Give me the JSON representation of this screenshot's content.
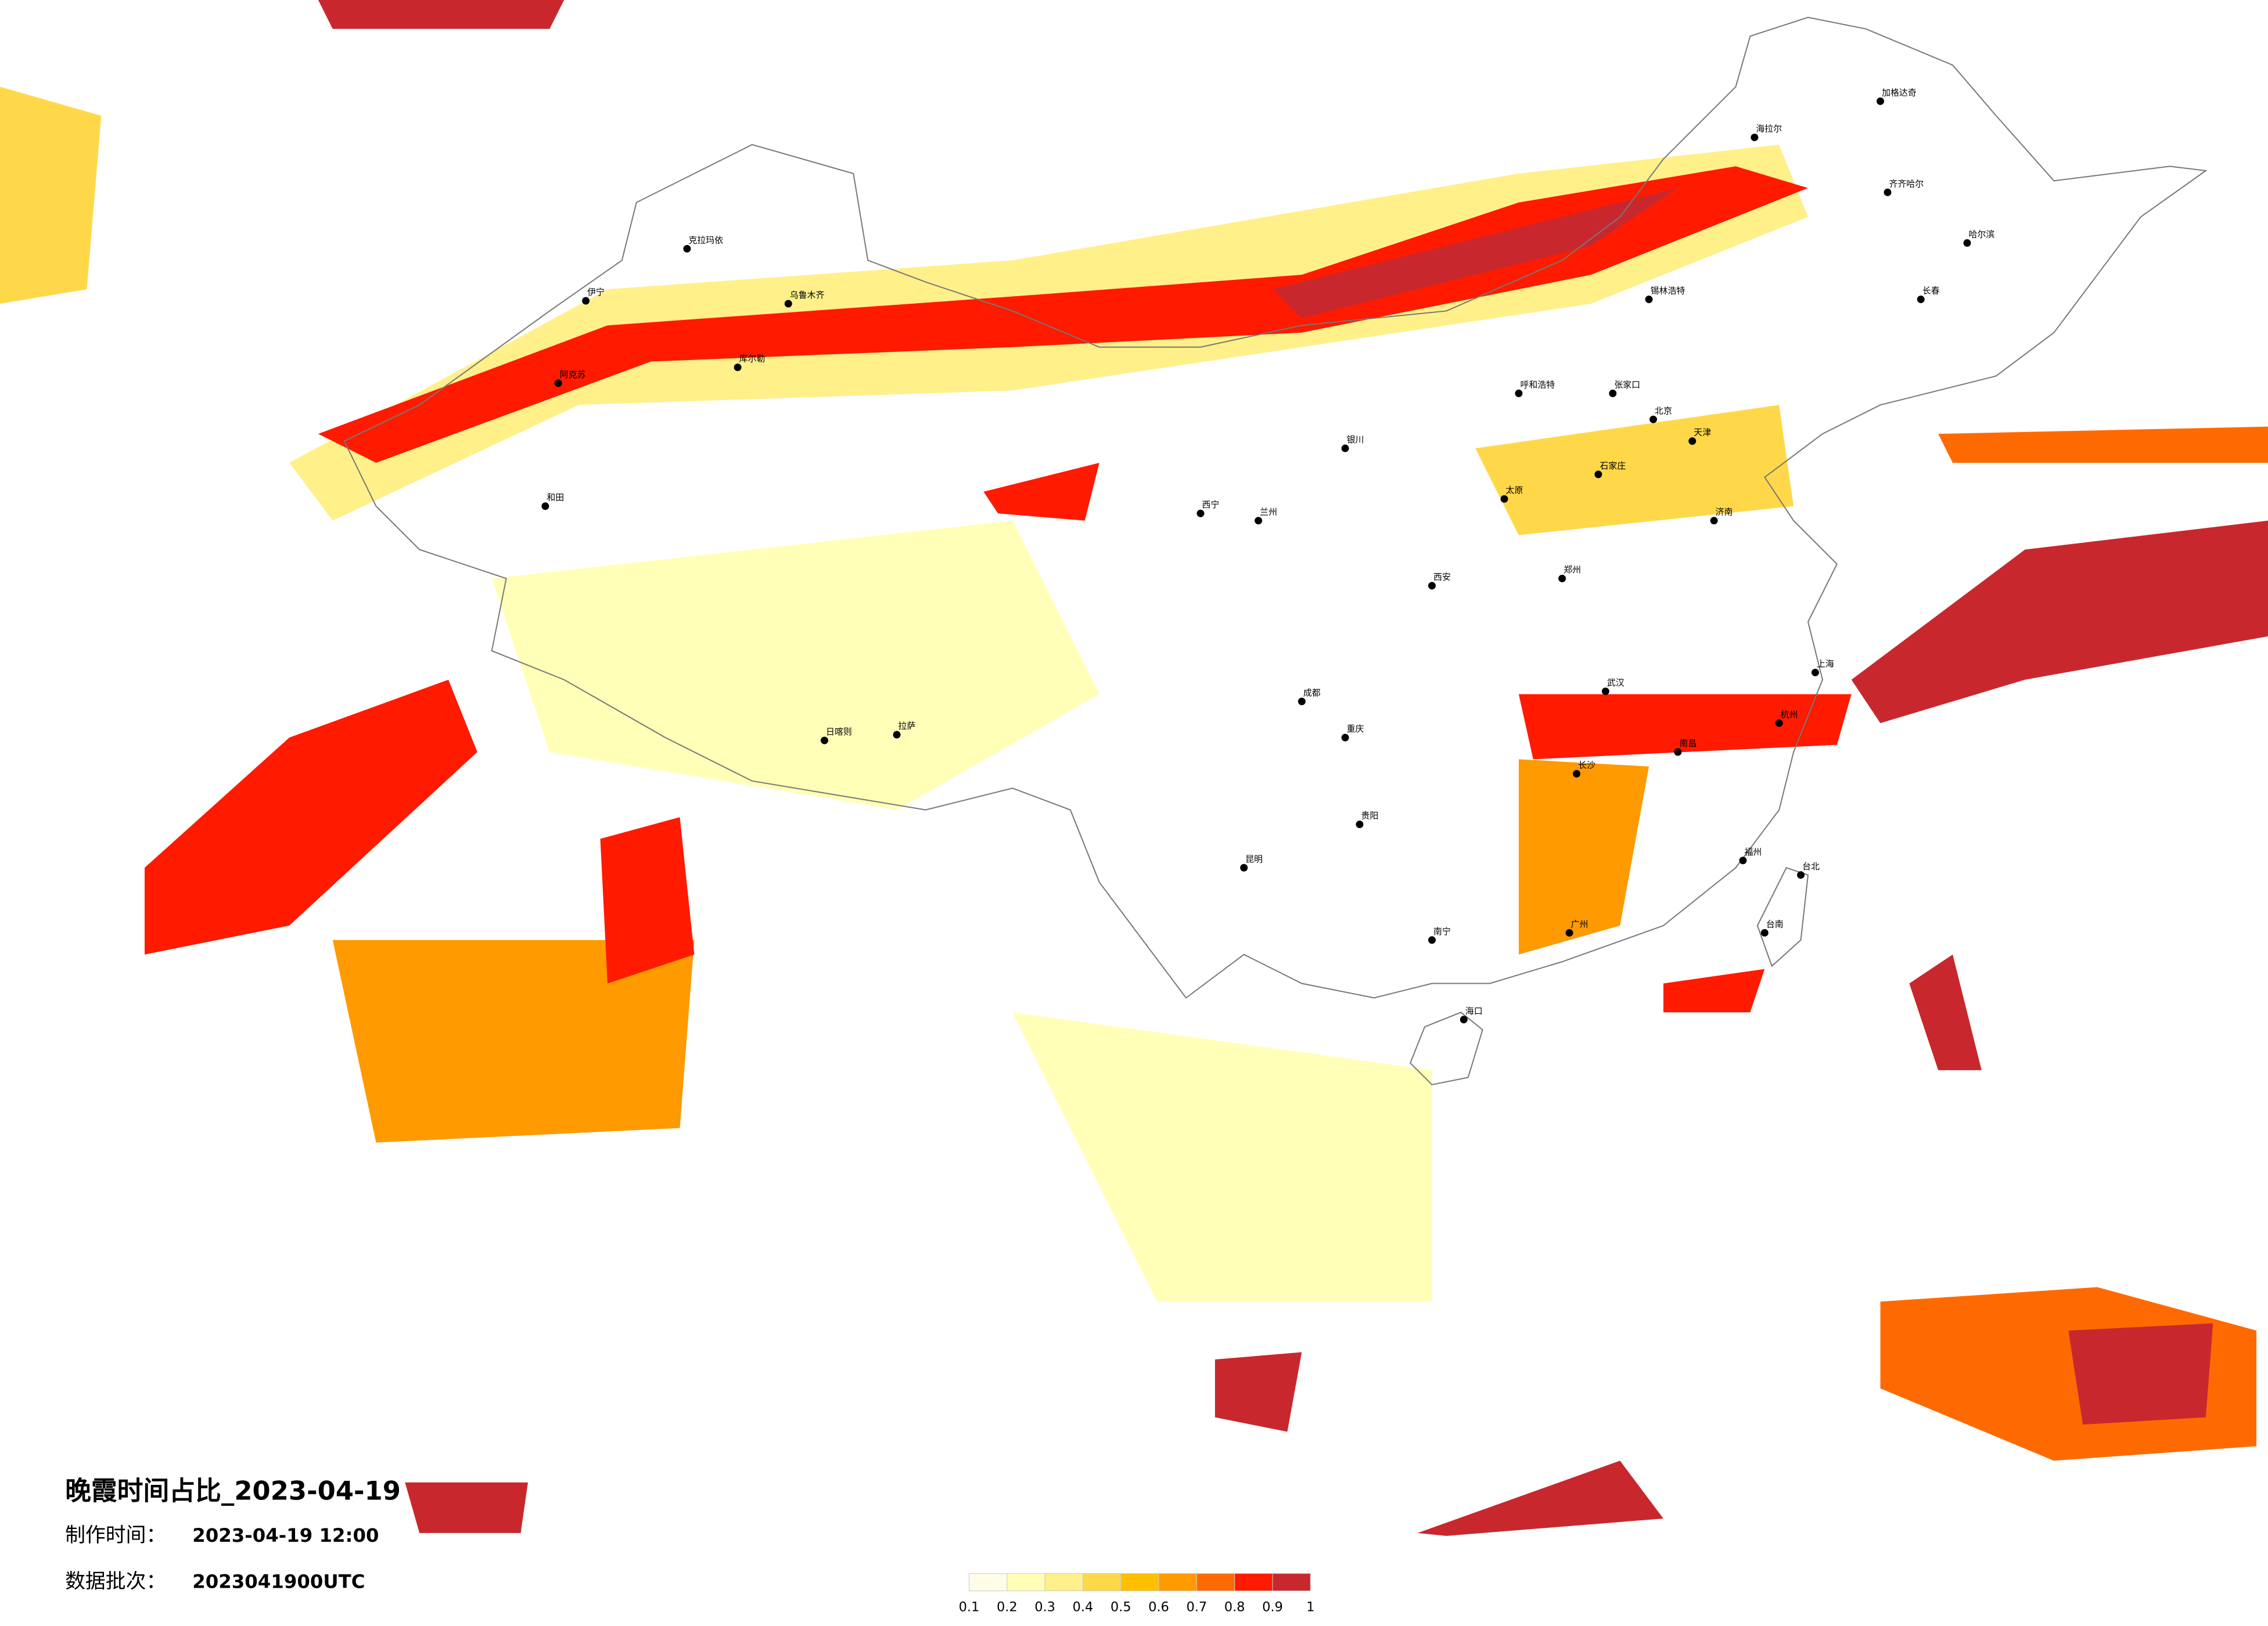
{
  "title": "晚霞时间占比_2023-04-19",
  "made_label": "制作时间：",
  "made_value": "2023-04-19 12:00",
  "batch_label": "数据批次：",
  "batch_value": "2023041900UTC",
  "colorbar": {
    "ticks": [
      0.1,
      0.2,
      0.3,
      0.4,
      0.5,
      0.6,
      0.7,
      0.8,
      0.9,
      1
    ],
    "colors": [
      "#fffde8",
      "#ffffb8",
      "#fff08a",
      "#ffd84a",
      "#ffbf00",
      "#ff9a00",
      "#ff6a00",
      "#ff1a00",
      "#c8282d"
    ]
  },
  "cities": [
    "克拉玛依",
    "伊宁",
    "乌鲁木齐",
    "库尔勒",
    "阿克苏",
    "和田",
    "海拉尔",
    "加格达奇",
    "齐齐哈尔",
    "哈尔滨",
    "长春",
    "锡林浩特",
    "呼和浩特",
    "张家口",
    "北京",
    "天津",
    "石家庄",
    "太原",
    "济南",
    "郑州",
    "西安",
    "兰州",
    "西宁",
    "银川",
    "武汉",
    "长沙",
    "南昌",
    "杭州",
    "上海",
    "福州",
    "广州",
    "南宁",
    "昆明",
    "贵阳",
    "成都",
    "重庆",
    "拉萨",
    "日喀则",
    "海口",
    "台北",
    "台南"
  ]
}
